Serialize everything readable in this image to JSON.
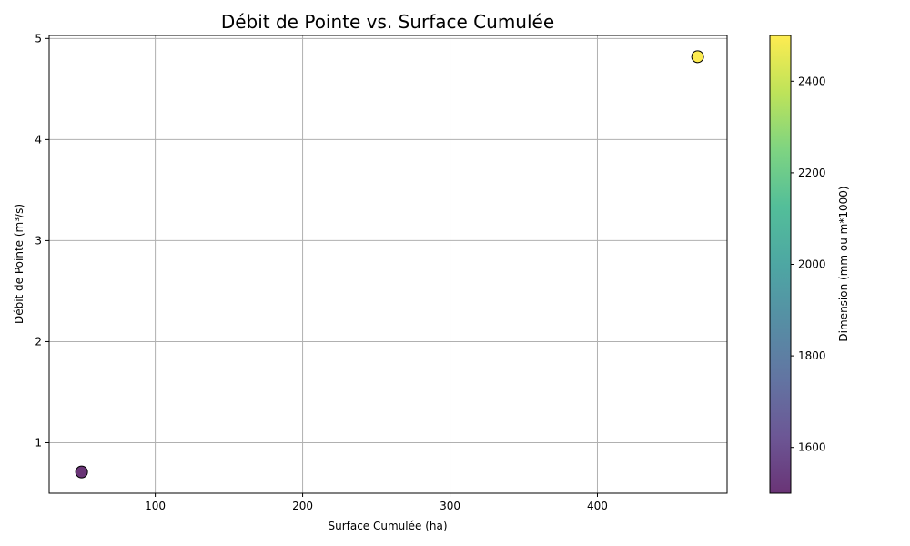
{
  "chart_data": {
    "type": "scatter",
    "title": "Débit de Pointe vs. Surface Cumulée",
    "xlabel": "Surface Cumulée (ha)",
    "ylabel": "Débit de Pointe (m³/s)",
    "xlim": [
      28,
      488
    ],
    "ylim": [
      0.5,
      5.03
    ],
    "x_ticks": [
      100,
      200,
      300,
      400
    ],
    "y_ticks": [
      1,
      2,
      3,
      4,
      5
    ],
    "grid": true,
    "points": [
      {
        "x": 50,
        "y": 0.71,
        "dimension": 1500
      },
      {
        "x": 468,
        "y": 4.82,
        "dimension": 2500
      }
    ],
    "colorbar": {
      "label": "Dimension (mm ou m*1000)",
      "range": [
        1500,
        2500
      ],
      "ticks": [
        1600,
        1800,
        2000,
        2200,
        2400
      ],
      "colormap": "viridis"
    }
  }
}
